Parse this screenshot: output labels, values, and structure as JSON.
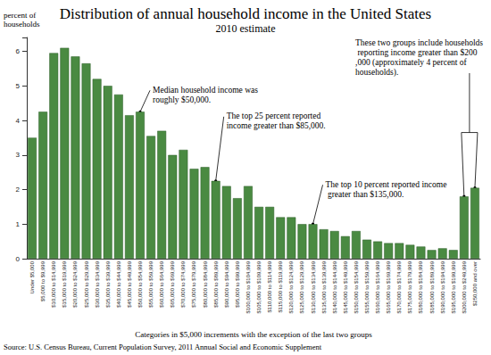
{
  "chart_data": {
    "type": "bar",
    "title": "Distribution of annual household income in the United States",
    "subtitle": "2010 estimate",
    "y_label": "percent of households",
    "x_label": "Categories in $5,000 increments with the exception of the last two groups",
    "source": "Source: U.S. Census Bureau, Current Population Survey, 2011 Annual Social and Economic Supplement",
    "categories": [
      "Under $5,000",
      "$5,000 to $9,999",
      "$10,000 to $14,999",
      "$15,000 to $19,999",
      "$20,000 to $24,999",
      "$25,000 to $29,999",
      "$30,000 to $34,999",
      "$35,000 to $39,999",
      "$40,000 to $44,999",
      "$45,000 to $49,999",
      "$50,000 to $54,999",
      "$55,000 to $59,999",
      "$60,000 to $64,999",
      "$65,000 to $69,999",
      "$70,000 to $74,999",
      "$75,000 to $79,999",
      "$80,000 to $84,999",
      "$85,000 to $89,999",
      "$90,000 to $94,999",
      "$95,000 to $99,999",
      "$100,000 to $104,999",
      "$105,000 to $109,999",
      "$110,000 to $114,999",
      "$115,000 to $119,999",
      "$120,000 to $124,999",
      "$125,000 to $129,999",
      "$130,000 to $134,999",
      "$135,000 to $139,999",
      "$140,000 to $144,999",
      "$145,000 to $149,999",
      "$150,000 to $154,999",
      "$155,000 to $159,999",
      "$160,000 to $164,999",
      "$165,000 to $169,999",
      "$170,000 to $174,999",
      "$175,000 to $179,999",
      "$180,000 to $184,999",
      "$185,000 to $189,999",
      "$190,000 to $194,999",
      "$195,000 to $199,999",
      "$200,000 to $249,999",
      "$250,000 and over"
    ],
    "values": [
      3.5,
      4.25,
      5.95,
      6.1,
      5.85,
      5.65,
      5.2,
      5.0,
      4.75,
      4.15,
      4.25,
      3.55,
      3.7,
      3.0,
      3.15,
      2.6,
      2.65,
      2.25,
      2.1,
      1.75,
      2.1,
      1.5,
      1.5,
      1.2,
      1.2,
      1.0,
      1.0,
      0.85,
      0.8,
      0.65,
      0.8,
      0.55,
      0.5,
      0.45,
      0.45,
      0.4,
      0.35,
      0.25,
      0.3,
      0.25,
      1.8,
      2.05
    ],
    "color": "#4a8a42",
    "ylim": [
      0,
      6.4
    ],
    "yticks": [
      0,
      1,
      2,
      3,
      4,
      5,
      6
    ],
    "grid": false,
    "annotations": [
      {
        "text": "Median household income was roughly $50,000.",
        "categories": [
          "$50,000 to $54,999"
        ]
      },
      {
        "text": "The top 25 percent reported income greater than $85,000.",
        "categories": [
          "$85,000 to $89,999"
        ]
      },
      {
        "text": "The top 10 percent reported income greater than $135,000.",
        "categories": [
          "$130,000 to $134,999"
        ]
      },
      {
        "text": "These two groups include households reporting income greater than $200,000 (approximately 4 percent of households).",
        "categories": [
          "$200,000 to $249,999",
          "$250,000 and over"
        ]
      }
    ]
  }
}
